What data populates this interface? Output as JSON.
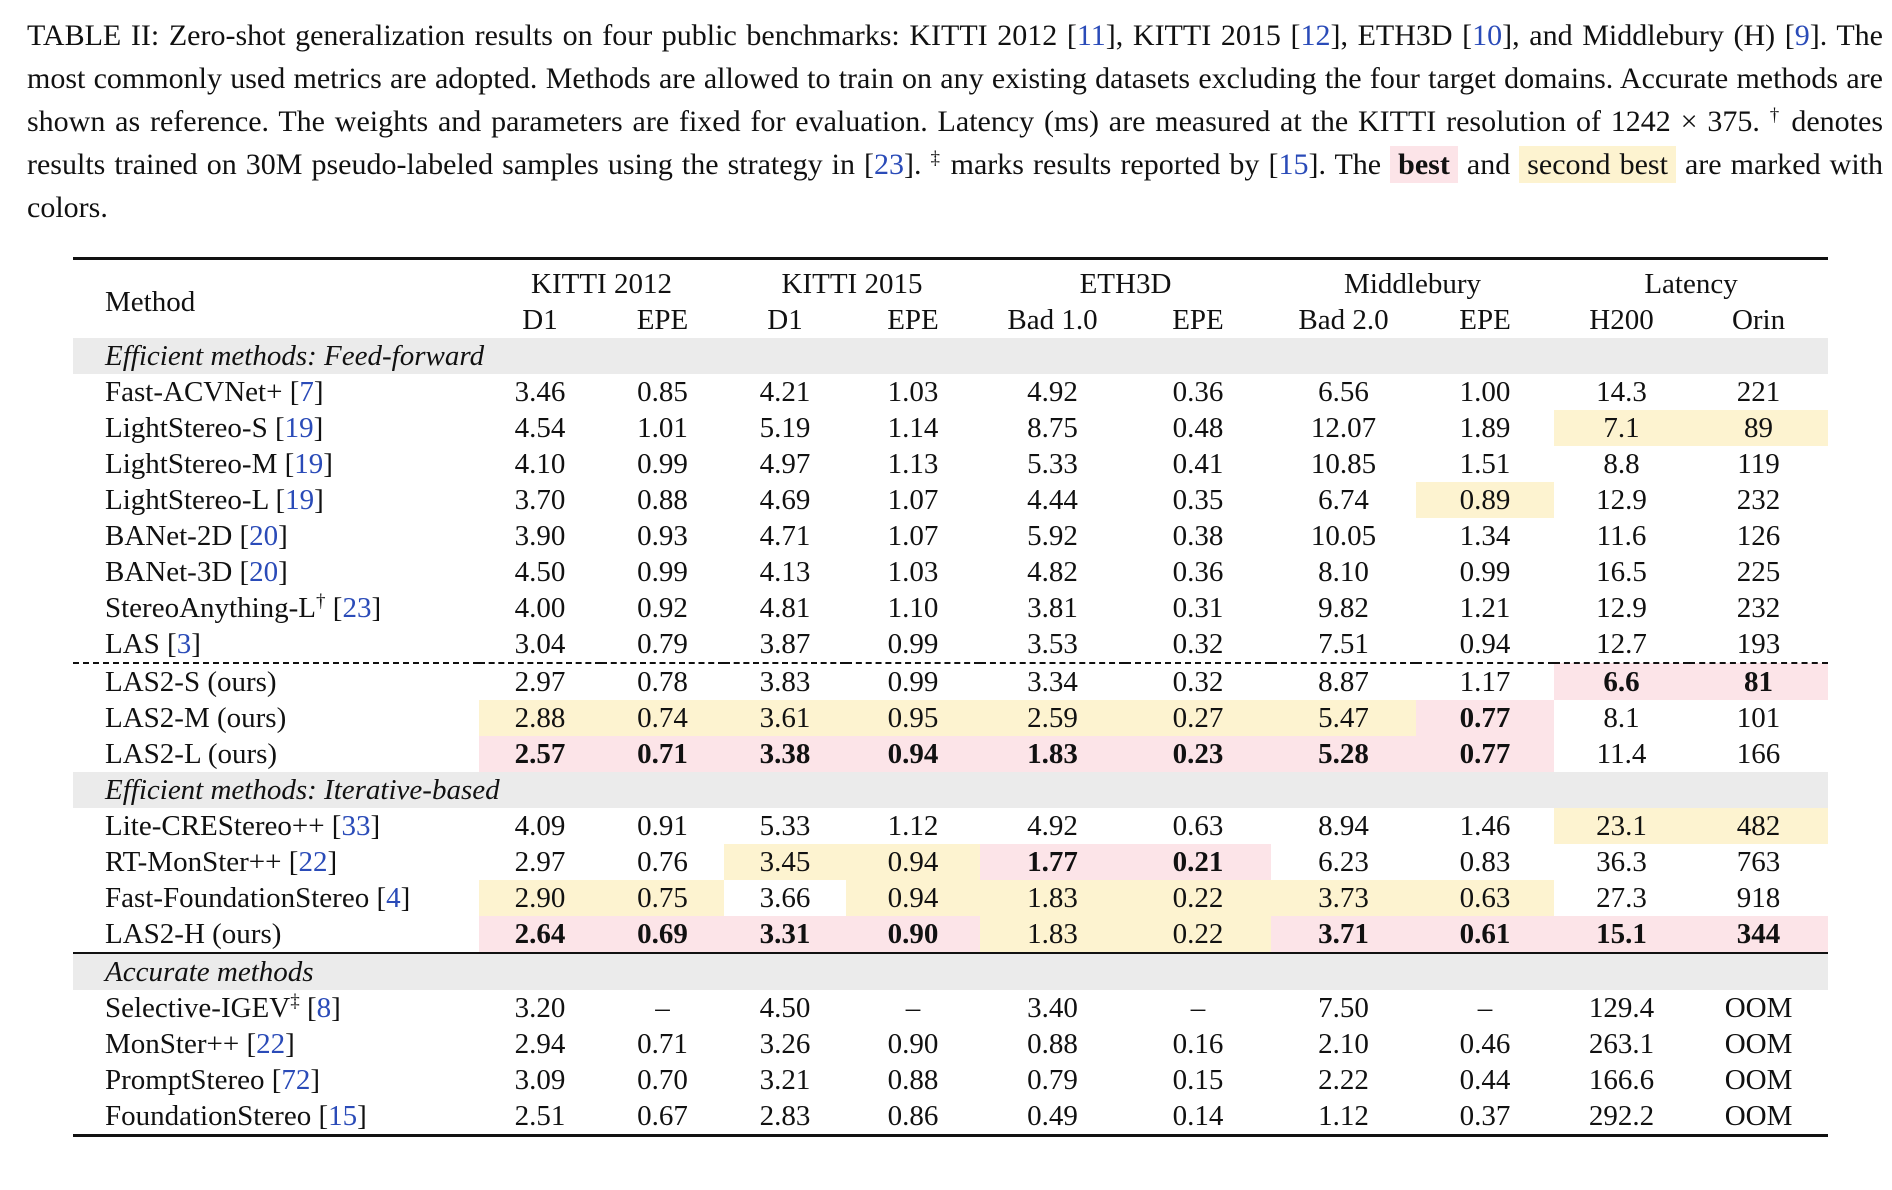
{
  "caption": [
    {
      "t": "TABLE II: Zero-shot generalization results on four public benchmarks: KITTI 2012 ["
    },
    {
      "t": "11",
      "style": "cite"
    },
    {
      "t": "], KITTI 2015 ["
    },
    {
      "t": "12",
      "style": "cite"
    },
    {
      "t": "], ETH3D ["
    },
    {
      "t": "10",
      "style": "cite"
    },
    {
      "t": "], and Middlebury (H) ["
    },
    {
      "t": "9",
      "style": "cite"
    },
    {
      "t": "]. The most commonly used metrics are adopted. Methods are allowed to train on any existing datasets excluding the four target domains. Accurate methods are shown as reference. The weights and parameters are fixed for evaluation. Latency (ms) are measured at the KITTI resolution of 1242 × 375. "
    },
    {
      "t": "†",
      "style": "sup"
    },
    {
      "t": " denotes results trained on 30M pseudo-labeled samples using the strategy in ["
    },
    {
      "t": "23",
      "style": "cite"
    },
    {
      "t": "]. "
    },
    {
      "t": "‡",
      "style": "sup"
    },
    {
      "t": " marks results reported by ["
    },
    {
      "t": "15",
      "style": "cite"
    },
    {
      "t": "]. The "
    },
    {
      "t": "best",
      "style": "best"
    },
    {
      "t": " and "
    },
    {
      "t": "second best",
      "style": "second"
    },
    {
      "t": " are marked with colors."
    }
  ],
  "table": {
    "method_header": "Method",
    "groups": [
      "KITTI 2012",
      "KITTI 2015",
      "ETH3D",
      "Middlebury",
      "Latency"
    ],
    "columns": [
      "D1",
      "EPE",
      "D1",
      "EPE",
      "Bad 1.0",
      "EPE",
      "Bad 2.0",
      "EPE",
      "H200",
      "Orin"
    ],
    "sections": [
      {
        "title": "Efficient methods: Feed-forward",
        "groups": [
          [
            {
              "name": [
                {
                  "t": "Fast-ACVNet+ ["
                },
                {
                  "t": "7",
                  "style": "cite"
                },
                {
                  "t": "]"
                }
              ],
              "values": [
                "3.46",
                "0.85",
                "4.21",
                "1.03",
                "4.92",
                "0.36",
                "6.56",
                "1.00",
                "14.3",
                "221"
              ]
            },
            {
              "name": [
                {
                  "t": "LightStereo-S ["
                },
                {
                  "t": "19",
                  "style": "cite"
                },
                {
                  "t": "]"
                }
              ],
              "values": [
                "4.54",
                "1.01",
                "5.19",
                "1.14",
                "8.75",
                "0.48",
                "12.07",
                "1.89",
                "7.1",
                "89"
              ],
              "second": [
                8,
                9
              ]
            },
            {
              "name": [
                {
                  "t": "LightStereo-M ["
                },
                {
                  "t": "19",
                  "style": "cite"
                },
                {
                  "t": "]"
                }
              ],
              "values": [
                "4.10",
                "0.99",
                "4.97",
                "1.13",
                "5.33",
                "0.41",
                "10.85",
                "1.51",
                "8.8",
                "119"
              ]
            },
            {
              "name": [
                {
                  "t": "LightStereo-L ["
                },
                {
                  "t": "19",
                  "style": "cite"
                },
                {
                  "t": "]"
                }
              ],
              "values": [
                "3.70",
                "0.88",
                "4.69",
                "1.07",
                "4.44",
                "0.35",
                "6.74",
                "0.89",
                "12.9",
                "232"
              ],
              "second": [
                7
              ]
            },
            {
              "name": [
                {
                  "t": "BANet-2D ["
                },
                {
                  "t": "20",
                  "style": "cite"
                },
                {
                  "t": "]"
                }
              ],
              "values": [
                "3.90",
                "0.93",
                "4.71",
                "1.07",
                "5.92",
                "0.38",
                "10.05",
                "1.34",
                "11.6",
                "126"
              ]
            },
            {
              "name": [
                {
                  "t": "BANet-3D ["
                },
                {
                  "t": "20",
                  "style": "cite"
                },
                {
                  "t": "]"
                }
              ],
              "values": [
                "4.50",
                "0.99",
                "4.13",
                "1.03",
                "4.82",
                "0.36",
                "8.10",
                "0.99",
                "16.5",
                "225"
              ]
            },
            {
              "name": [
                {
                  "t": "StereoAnything-L"
                },
                {
                  "t": "†",
                  "style": "sup"
                },
                {
                  "t": " ["
                },
                {
                  "t": "23",
                  "style": "cite"
                },
                {
                  "t": "]"
                }
              ],
              "values": [
                "4.00",
                "0.92",
                "4.81",
                "1.10",
                "3.81",
                "0.31",
                "9.82",
                "1.21",
                "12.9",
                "232"
              ]
            },
            {
              "name": [
                {
                  "t": "LAS ["
                },
                {
                  "t": "3",
                  "style": "cite"
                },
                {
                  "t": "]"
                }
              ],
              "values": [
                "3.04",
                "0.79",
                "3.87",
                "0.99",
                "3.53",
                "0.32",
                "7.51",
                "0.94",
                "12.7",
                "193"
              ]
            }
          ],
          [
            {
              "name": [
                {
                  "t": "LAS2-S (ours)"
                }
              ],
              "values": [
                "2.97",
                "0.78",
                "3.83",
                "0.99",
                "3.34",
                "0.32",
                "8.87",
                "1.17",
                "6.6",
                "81"
              ],
              "best": [
                8,
                9
              ]
            },
            {
              "name": [
                {
                  "t": "LAS2-M (ours)"
                }
              ],
              "values": [
                "2.88",
                "0.74",
                "3.61",
                "0.95",
                "2.59",
                "0.27",
                "5.47",
                "0.77",
                "8.1",
                "101"
              ],
              "second": [
                0,
                1,
                2,
                3,
                4,
                5,
                6
              ],
              "best": [
                7
              ]
            },
            {
              "name": [
                {
                  "t": "LAS2-L (ours)"
                }
              ],
              "values": [
                "2.57",
                "0.71",
                "3.38",
                "0.94",
                "1.83",
                "0.23",
                "5.28",
                "0.77",
                "11.4",
                "166"
              ],
              "best": [
                0,
                1,
                2,
                3,
                4,
                5,
                6,
                7
              ]
            }
          ]
        ]
      },
      {
        "title": "Efficient methods: Iterative-based",
        "groups": [
          [
            {
              "name": [
                {
                  "t": "Lite-CREStereo++ ["
                },
                {
                  "t": "33",
                  "style": "cite"
                },
                {
                  "t": "]"
                }
              ],
              "values": [
                "4.09",
                "0.91",
                "5.33",
                "1.12",
                "4.92",
                "0.63",
                "8.94",
                "1.46",
                "23.1",
                "482"
              ],
              "second": [
                8,
                9
              ]
            },
            {
              "name": [
                {
                  "t": "RT-MonSter++ ["
                },
                {
                  "t": "22",
                  "style": "cite"
                },
                {
                  "t": "]"
                }
              ],
              "values": [
                "2.97",
                "0.76",
                "3.45",
                "0.94",
                "1.77",
                "0.21",
                "6.23",
                "0.83",
                "36.3",
                "763"
              ],
              "second": [
                2,
                3
              ],
              "best": [
                4,
                5
              ]
            },
            {
              "name": [
                {
                  "t": "Fast-FoundationStereo ["
                },
                {
                  "t": "4",
                  "style": "cite"
                },
                {
                  "t": "]"
                }
              ],
              "values": [
                "2.90",
                "0.75",
                "3.66",
                "0.94",
                "1.83",
                "0.22",
                "3.73",
                "0.63",
                "27.3",
                "918"
              ],
              "second": [
                0,
                1,
                3,
                4,
                5,
                6,
                7
              ]
            },
            {
              "name": [
                {
                  "t": "LAS2-H (ours)"
                }
              ],
              "values": [
                "2.64",
                "0.69",
                "3.31",
                "0.90",
                "1.83",
                "0.22",
                "3.71",
                "0.61",
                "15.1",
                "344"
              ],
              "best": [
                0,
                1,
                2,
                3,
                6,
                7,
                8,
                9
              ],
              "second": [
                4,
                5
              ]
            }
          ]
        ]
      },
      {
        "title": "Accurate methods",
        "groups": [
          [
            {
              "name": [
                {
                  "t": "Selective-IGEV"
                },
                {
                  "t": "‡",
                  "style": "sup"
                },
                {
                  "t": " ["
                },
                {
                  "t": "8",
                  "style": "cite"
                },
                {
                  "t": "]"
                }
              ],
              "values": [
                "3.20",
                "–",
                "4.50",
                "–",
                "3.40",
                "–",
                "7.50",
                "–",
                "129.4",
                "OOM"
              ]
            },
            {
              "name": [
                {
                  "t": "MonSter++ ["
                },
                {
                  "t": "22",
                  "style": "cite"
                },
                {
                  "t": "]"
                }
              ],
              "values": [
                "2.94",
                "0.71",
                "3.26",
                "0.90",
                "0.88",
                "0.16",
                "2.10",
                "0.46",
                "263.1",
                "OOM"
              ]
            },
            {
              "name": [
                {
                  "t": "PromptStereo ["
                },
                {
                  "t": "72",
                  "style": "cite"
                },
                {
                  "t": "]"
                }
              ],
              "values": [
                "3.09",
                "0.70",
                "3.21",
                "0.88",
                "0.79",
                "0.15",
                "2.22",
                "0.44",
                "166.6",
                "OOM"
              ]
            },
            {
              "name": [
                {
                  "t": "FoundationStereo ["
                },
                {
                  "t": "15",
                  "style": "cite"
                },
                {
                  "t": "]"
                }
              ],
              "values": [
                "2.51",
                "0.67",
                "2.83",
                "0.86",
                "0.49",
                "0.14",
                "1.12",
                "0.37",
                "292.2",
                "OOM"
              ]
            }
          ]
        ]
      }
    ]
  }
}
